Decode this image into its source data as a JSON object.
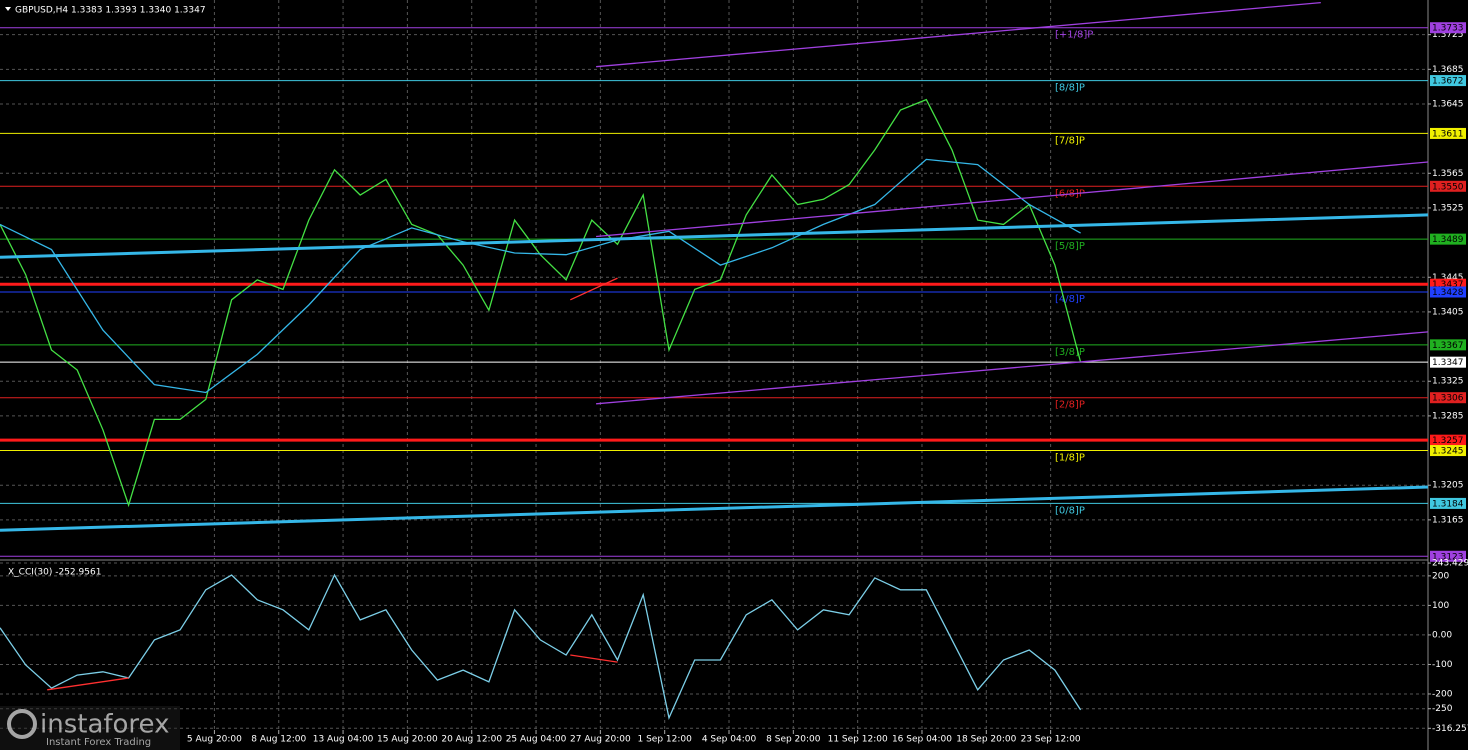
{
  "chart_data": [
    {
      "type": "line",
      "title": "GBPUSD,H4  1.3383 1.3393 1.3340 1.3347",
      "xlim": [
        0,
        333
      ],
      "ylim": [
        1.3121,
        1.3765
      ],
      "grid": true,
      "yticks": [
        1.3725,
        1.3685,
        1.3645,
        1.3565,
        1.3525,
        1.3445,
        1.3405,
        1.3325,
        1.3285,
        1.3205,
        1.3165
      ],
      "xticks": [
        {
          "value": 50,
          "label": "5 Aug 20:00"
        },
        {
          "value": 65,
          "label": "8 Aug 12:00"
        },
        {
          "value": 80,
          "label": "13 Aug 04:00"
        },
        {
          "value": 95,
          "label": "15 Aug 20:00"
        },
        {
          "value": 110,
          "label": "20 Aug 12:00"
        },
        {
          "value": 125,
          "label": "25 Aug 04:00"
        },
        {
          "value": 140,
          "label": "27 Aug 20:00"
        },
        {
          "value": 155,
          "label": "1 Sep 12:00"
        },
        {
          "value": 170,
          "label": "4 Sep 04:00"
        },
        {
          "value": 185,
          "label": "8 Sep 20:00"
        },
        {
          "value": 200,
          "label": "11 Sep 12:00"
        },
        {
          "value": 215,
          "label": "16 Sep 04:00"
        },
        {
          "value": 230,
          "label": "18 Sep 20:00"
        },
        {
          "value": 245,
          "label": "23 Sep 12:00"
        }
      ],
      "series": [
        {
          "color": "#44e044",
          "x": [
            0,
            6,
            12,
            18,
            24,
            30,
            36,
            42,
            48,
            54,
            60,
            66,
            72,
            78,
            84,
            90,
            96,
            102,
            108,
            114,
            120,
            126,
            132,
            138,
            144,
            150,
            156,
            162,
            168,
            174,
            180,
            186,
            192,
            198,
            204,
            210,
            216,
            222,
            228,
            234,
            240,
            246,
            252
          ],
          "values": [
            1.3506,
            1.3448,
            1.3361,
            1.3338,
            1.3269,
            1.3182,
            1.3281,
            1.3281,
            1.3304,
            1.3419,
            1.3442,
            1.3431,
            1.3511,
            1.3569,
            1.354,
            1.3558,
            1.3506,
            1.3494,
            1.3459,
            1.3407,
            1.3511,
            1.3471,
            1.3442,
            1.3511,
            1.3483,
            1.354,
            1.3361,
            1.3431,
            1.3442,
            1.3517,
            1.3563,
            1.3529,
            1.3535,
            1.3552,
            1.3592,
            1.3638,
            1.365,
            1.3592,
            1.3511,
            1.3506,
            1.3529,
            1.3459,
            1.3347
          ]
        },
        {
          "color": "#35b7e8",
          "x": [
            0,
            12,
            24,
            36,
            48,
            60,
            72,
            84,
            96,
            108,
            120,
            132,
            144,
            156,
            168,
            180,
            192,
            204,
            216,
            228,
            240,
            252
          ],
          "values": [
            1.3506,
            1.3477,
            1.3384,
            1.3321,
            1.3312,
            1.3356,
            1.3413,
            1.3477,
            1.3502,
            1.3486,
            1.3473,
            1.3471,
            1.3488,
            1.3498,
            1.3459,
            1.3479,
            1.3506,
            1.3529,
            1.3581,
            1.3575,
            1.3529,
            1.3496
          ]
        },
        {
          "color": "#a040e0",
          "x": [
            139,
            308
          ],
          "values": [
            1.3688,
            1.3762
          ]
        },
        {
          "color": "#a040e0",
          "x": [
            139,
            333
          ],
          "values": [
            1.3492,
            1.3578
          ]
        },
        {
          "color": "#a040e0",
          "x": [
            139,
            333
          ],
          "values": [
            1.3299,
            1.3382
          ]
        },
        {
          "color": "#35b7e8",
          "style": "thick",
          "x": [
            0,
            333
          ],
          "values": [
            1.3468,
            1.3517
          ]
        },
        {
          "color": "#35b7e8",
          "style": "thick",
          "x": [
            0,
            333
          ],
          "values": [
            1.3153,
            1.3203
          ]
        },
        {
          "color": "#ff3030",
          "x": [
            133,
            144
          ],
          "values": [
            1.3419,
            1.3444
          ]
        }
      ],
      "levels": [
        {
          "value": 1.3733,
          "color": "#a040e0",
          "murray": "[+1/8]P"
        },
        {
          "value": 1.3672,
          "color": "#40c8e0",
          "murray": "[8/8]P"
        },
        {
          "value": 1.3611,
          "color": "#f0f000",
          "murray": "[7/8]P"
        },
        {
          "value": 1.355,
          "label": "1.3550",
          "color": "#e02020",
          "murray": "[6/8]P"
        },
        {
          "value": 1.3489,
          "color": "#20b020",
          "murray": "[5/8]P"
        },
        {
          "value": 1.3437,
          "color": "#ff1a1a",
          "style": "thick"
        },
        {
          "value": 1.3428,
          "color": "#2040ff",
          "murray": "[4/8]P"
        },
        {
          "value": 1.3367,
          "color": "#20b020",
          "murray": "[3/8]P"
        },
        {
          "value": 1.3347,
          "color": "#ffffff"
        },
        {
          "value": 1.3306,
          "color": "#e02020",
          "murray": "[2/8]P"
        },
        {
          "value": 1.3257,
          "color": "#ff1a1a",
          "style": "thick"
        },
        {
          "value": 1.3245,
          "color": "#f0f000",
          "murray": "[1/8]P"
        },
        {
          "value": 1.3184,
          "color": "#40c8e0",
          "murray": "[0/8]P"
        },
        {
          "value": 1.3123,
          "color": "#a040e0"
        }
      ]
    },
    {
      "type": "line",
      "title": "X_CCI(30) -252.9561",
      "xlim": [
        0,
        333
      ],
      "ylim": [
        -383,
        247
      ],
      "yticks": [
        243.429,
        200,
        100,
        {
          "value": 0,
          "label": "0.00"
        },
        -100,
        -200,
        -250,
        -316.257
      ],
      "series": [
        {
          "color": "#7ccfe8",
          "x": [
            0,
            6,
            12,
            18,
            24,
            30,
            36,
            42,
            48,
            54,
            60,
            66,
            72,
            78,
            84,
            90,
            96,
            102,
            108,
            114,
            120,
            126,
            132,
            138,
            144,
            150,
            156,
            162,
            168,
            174,
            180,
            186,
            192,
            198,
            204,
            210,
            216,
            222,
            228,
            234,
            240,
            246,
            252
          ],
          "values": [
            24,
            -102,
            -180,
            -136,
            -125,
            -146,
            -17,
            17,
            153,
            203,
            119,
            85,
            17,
            203,
            51,
            85,
            -51,
            -153,
            -119,
            -159,
            85,
            -17,
            -68,
            68,
            -85,
            136,
            -281,
            -85,
            -85,
            68,
            119,
            17,
            85,
            68,
            193,
            153,
            153,
            -17,
            -186,
            -85,
            -51,
            -119,
            -254
          ]
        },
        {
          "color": "#ff3030",
          "x": [
            11,
            30
          ],
          "values": [
            -186,
            -146
          ]
        },
        {
          "color": "#ff3030",
          "x": [
            133,
            144
          ],
          "values": [
            -68,
            -92
          ]
        }
      ]
    }
  ],
  "watermark": {
    "brand": "instaforex",
    "tagline": "Instant Forex Trading"
  }
}
